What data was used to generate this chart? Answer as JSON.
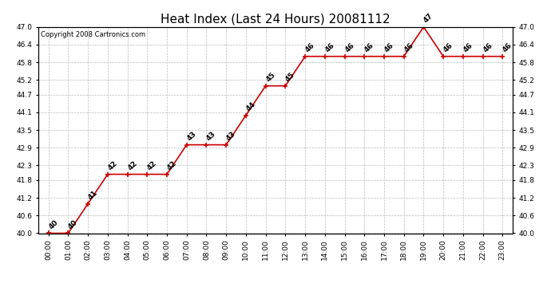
{
  "title": "Heat Index (Last 24 Hours) 20081112",
  "copyright": "Copyright 2008 Cartronics.com",
  "hours": [
    "00:00",
    "01:00",
    "02:00",
    "03:00",
    "04:00",
    "05:00",
    "06:00",
    "07:00",
    "08:00",
    "09:00",
    "10:00",
    "11:00",
    "12:00",
    "13:00",
    "14:00",
    "15:00",
    "16:00",
    "17:00",
    "18:00",
    "19:00",
    "20:00",
    "21:00",
    "22:00",
    "23:00"
  ],
  "values": [
    40,
    40,
    41,
    42,
    42,
    42,
    42,
    43,
    43,
    43,
    44,
    45,
    45,
    46,
    46,
    46,
    46,
    46,
    46,
    47,
    46,
    46,
    46,
    46
  ],
  "line_color": "#cc0000",
  "marker_color": "#cc0000",
  "background_color": "#ffffff",
  "grid_color": "#bbbbbb",
  "ylim_min": 40.0,
  "ylim_max": 47.0,
  "yticks": [
    40.0,
    40.6,
    41.2,
    41.8,
    42.3,
    42.9,
    43.5,
    44.1,
    44.7,
    45.2,
    45.8,
    46.4,
    47.0
  ],
  "title_fontsize": 11,
  "label_fontsize": 6.5,
  "copyright_fontsize": 6,
  "annotation_fontsize": 6.5
}
